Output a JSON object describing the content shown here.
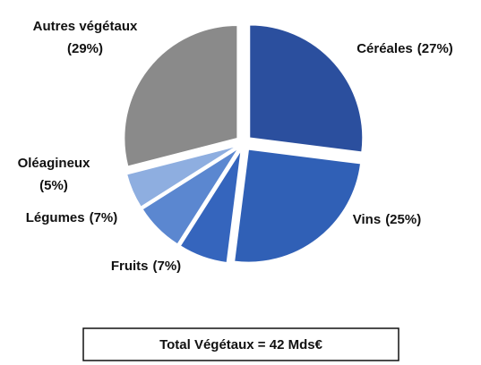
{
  "chart_data": {
    "type": "pie",
    "categories": [
      "Céréales",
      "Vins",
      "Fruits",
      "Légumes",
      "Oléagineux",
      "Autres végétaux"
    ],
    "values": [
      27,
      25,
      7,
      7,
      5,
      29
    ],
    "value_labels": [
      "(27%)",
      "(25%)",
      "(7%)",
      "(7%)",
      "(5%)",
      "(29%)"
    ],
    "colors": [
      "#2b4f9e",
      "#3060b6",
      "#3565bd",
      "#5b87d0",
      "#8eaee0",
      "#8a8a8a"
    ],
    "annotation": "Total Végétaux = 42 Mds€"
  }
}
